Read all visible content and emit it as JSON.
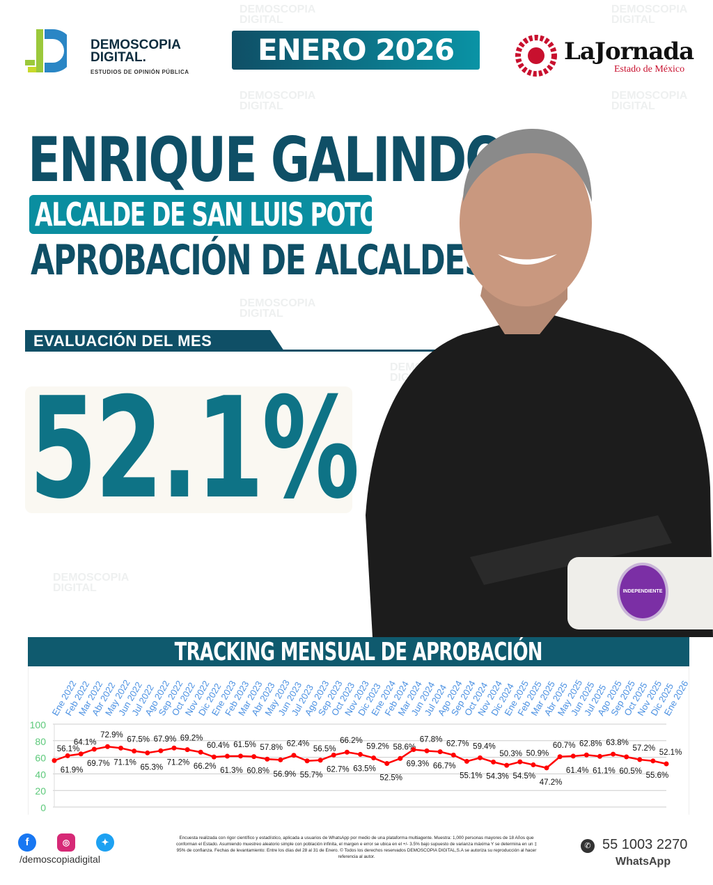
{
  "header": {
    "brand_name": "DEMOSCOPIA DIGITAL",
    "brand_line1": "DEMOSCOPIA",
    "brand_line2": "DIGITAL.",
    "brand_tagline": "ESTUDIOS DE OPINIÓN PÚBLICA",
    "month": "ENERO 2026",
    "partner_name": "LaJornada",
    "partner_sub": "Estado de México"
  },
  "hero": {
    "name": "ENRIQUE GALINDO",
    "role": "ALCALDE DE SAN LUIS POTOSÍ",
    "subtitle": "APROBACIÓN DE ALCALDES",
    "eval_label": "EVALUACIÓN DEL MES",
    "approval": "52.1%",
    "party": "INDEPENDIENTE",
    "party_color": "#7b2fa5"
  },
  "colors": {
    "primary": "#0f4f66",
    "accent": "#0a8ea0",
    "line": "#ff0000",
    "tick_x": "#4a90e2",
    "tick_y": "#5cc97a"
  },
  "chart_data": {
    "type": "line",
    "title": "TRACKING MENSUAL DE APROBACIÓN",
    "ylim": [
      0,
      100
    ],
    "yticks": [
      0,
      20,
      40,
      60,
      80,
      100
    ],
    "grid": true,
    "categories": [
      "Ene 2022",
      "Feb 2022",
      "Mar 2022",
      "Abr 2022",
      "May 2022",
      "Jun 2022",
      "Jul 2022",
      "Ago 2022",
      "Sep 2022",
      "Oct 2022",
      "Nov 2022",
      "Dic 2022",
      "Ene 2023",
      "Feb 2023",
      "Mar 2023",
      "Abr 2023",
      "May 2023",
      "Jun 2023",
      "Jul 2023",
      "Ago 2023",
      "Sep 2023",
      "Oct 2023",
      "Nov 2023",
      "Dic 2023",
      "Ene 2024",
      "Feb 2024",
      "Mar 2024",
      "Jun 2024",
      "Jul 2024",
      "Ago 2024",
      "Sep 2024",
      "Oct 2024",
      "Nov 2024",
      "Dic 2024",
      "Ene 2025",
      "Feb 2025",
      "Mar 2025",
      "Abr 2025",
      "May 2025",
      "Jun 2025",
      "Jul 2025",
      "Ago 2025",
      "Sep 2025",
      "Oct 2025",
      "Nov 2025",
      "Dic 2025",
      "Ene 2026"
    ],
    "values": [
      56.1,
      61.9,
      64.1,
      69.7,
      72.9,
      71.1,
      67.5,
      65.3,
      67.9,
      71.2,
      69.2,
      66.2,
      60.4,
      61.3,
      61.5,
      60.8,
      57.8,
      56.9,
      62.4,
      55.7,
      56.5,
      62.7,
      66.2,
      63.5,
      59.2,
      52.5,
      58.6,
      69.3,
      67.8,
      66.7,
      62.7,
      55.1,
      59.4,
      54.3,
      50.3,
      54.5,
      50.9,
      47.2,
      60.7,
      61.4,
      62.8,
      61.1,
      63.8,
      60.5,
      57.2,
      55.6,
      52.1
    ]
  },
  "footer": {
    "handle": "/demoscopiadigital",
    "phone": "55 1003 2270",
    "whatsapp": "WhatsApp",
    "disclaimer": "Encuesta realizada con rigor científico y estadístico, aplicada a usuarios de WhatsApp por medio de una plataforma multiagente. Muestra: 1,000 personas mayores de 18 Años que conforman el Estado. Asumiendo muestreo aleatorio simple con población infinita, el margen e error se ubica en el +/- 3.5% bajo supuesto de varianza máxima Y se determina en un ‡ 95% de confianza. Fechas de levantamiento: Entre los días del 28 al 31 de Enero. © Todos los derechos reservados DEMOSCOPIA DIGITAL,S.A se autoriza su reproducción al hacer referencia al autor."
  }
}
